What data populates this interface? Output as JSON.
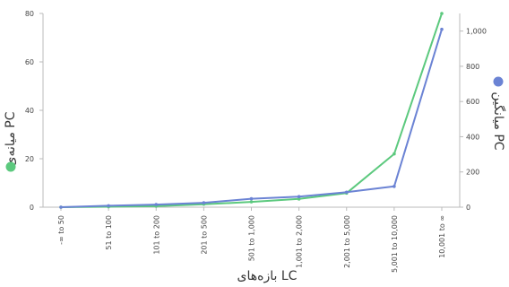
{
  "chart_data": {
    "type": "line",
    "categories": [
      "-∞ to 50",
      "51 to 100",
      "101 to 200",
      "201 to 500",
      "501 to 1,000",
      "1,001 to 2,000",
      "2,001 to 5,000",
      "5,001 to 10,000",
      "10,001 to ∞"
    ],
    "xlabel": "بازه‌های LC",
    "y_left": {
      "label": "میانه‌ی PC",
      "min": 0,
      "max": 80,
      "ticks": [
        0,
        20,
        40,
        60,
        80
      ],
      "tick_labels": [
        "0",
        "20",
        "40",
        "60",
        "80"
      ]
    },
    "y_right": {
      "label": "میانگین PC",
      "min": 0,
      "max": 1100,
      "ticks": [
        0,
        200,
        400,
        600,
        800,
        1000
      ],
      "tick_labels": [
        "0",
        "200",
        "400",
        "600",
        "800",
        "1,000"
      ]
    },
    "series": [
      {
        "key": "median",
        "axis": "left",
        "color": "#5cc97e",
        "values": [
          0,
          0.2,
          0.4,
          1.2,
          2.2,
          3.4,
          5.8,
          22,
          80
        ]
      },
      {
        "key": "mean",
        "axis": "right",
        "color": "#6b83d4",
        "values": [
          0,
          8,
          15,
          25,
          48,
          60,
          85,
          118,
          1010
        ]
      }
    ],
    "grid": false,
    "legend": "axis-titles"
  }
}
